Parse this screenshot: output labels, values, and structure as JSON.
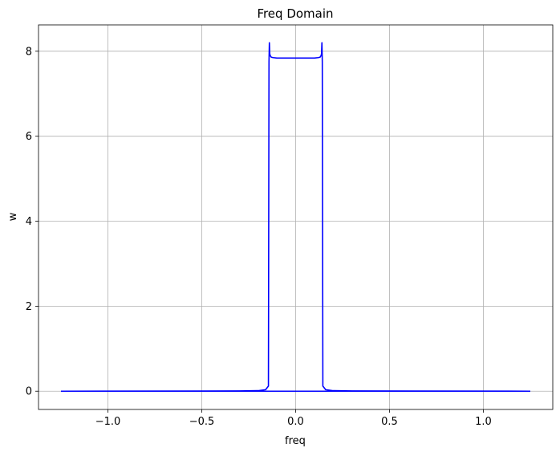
{
  "chart_data": {
    "type": "line",
    "title": "Freq Domain",
    "xlabel": "freq",
    "ylabel": "w",
    "xlim": [
      -1.37,
      1.37
    ],
    "ylim": [
      -0.43,
      8.62
    ],
    "grid": true,
    "x_ticks": [
      -1.0,
      -0.5,
      0.0,
      0.5,
      1.0
    ],
    "x_tick_labels": [
      "−1.0",
      "−0.5",
      "0.0",
      "0.5",
      "1.0"
    ],
    "y_ticks": [
      0,
      2,
      4,
      6,
      8
    ],
    "y_tick_labels": [
      "0",
      "2",
      "4",
      "6",
      "8"
    ],
    "colors": {
      "line": "#0000ff",
      "grid": "#b0b0b0"
    },
    "series": [
      {
        "x": [
          -1.25,
          -0.3,
          -0.2,
          -0.16,
          -0.145,
          -0.142,
          -0.14,
          -0.138,
          -0.136,
          -0.133,
          -0.13,
          -0.12,
          -0.1,
          -0.05,
          0.0,
          0.05,
          0.1,
          0.12,
          0.13,
          0.133,
          0.136,
          0.138,
          0.14,
          0.142,
          0.145,
          0.16,
          0.2,
          0.3,
          1.25
        ],
        "y": [
          0.0,
          0.005,
          0.012,
          0.035,
          0.12,
          7.75,
          8.2,
          7.95,
          7.9,
          7.88,
          7.86,
          7.85,
          7.84,
          7.84,
          7.84,
          7.84,
          7.84,
          7.85,
          7.86,
          7.88,
          7.9,
          7.95,
          8.2,
          7.75,
          0.12,
          0.035,
          0.012,
          0.005,
          0.0
        ]
      }
    ]
  }
}
